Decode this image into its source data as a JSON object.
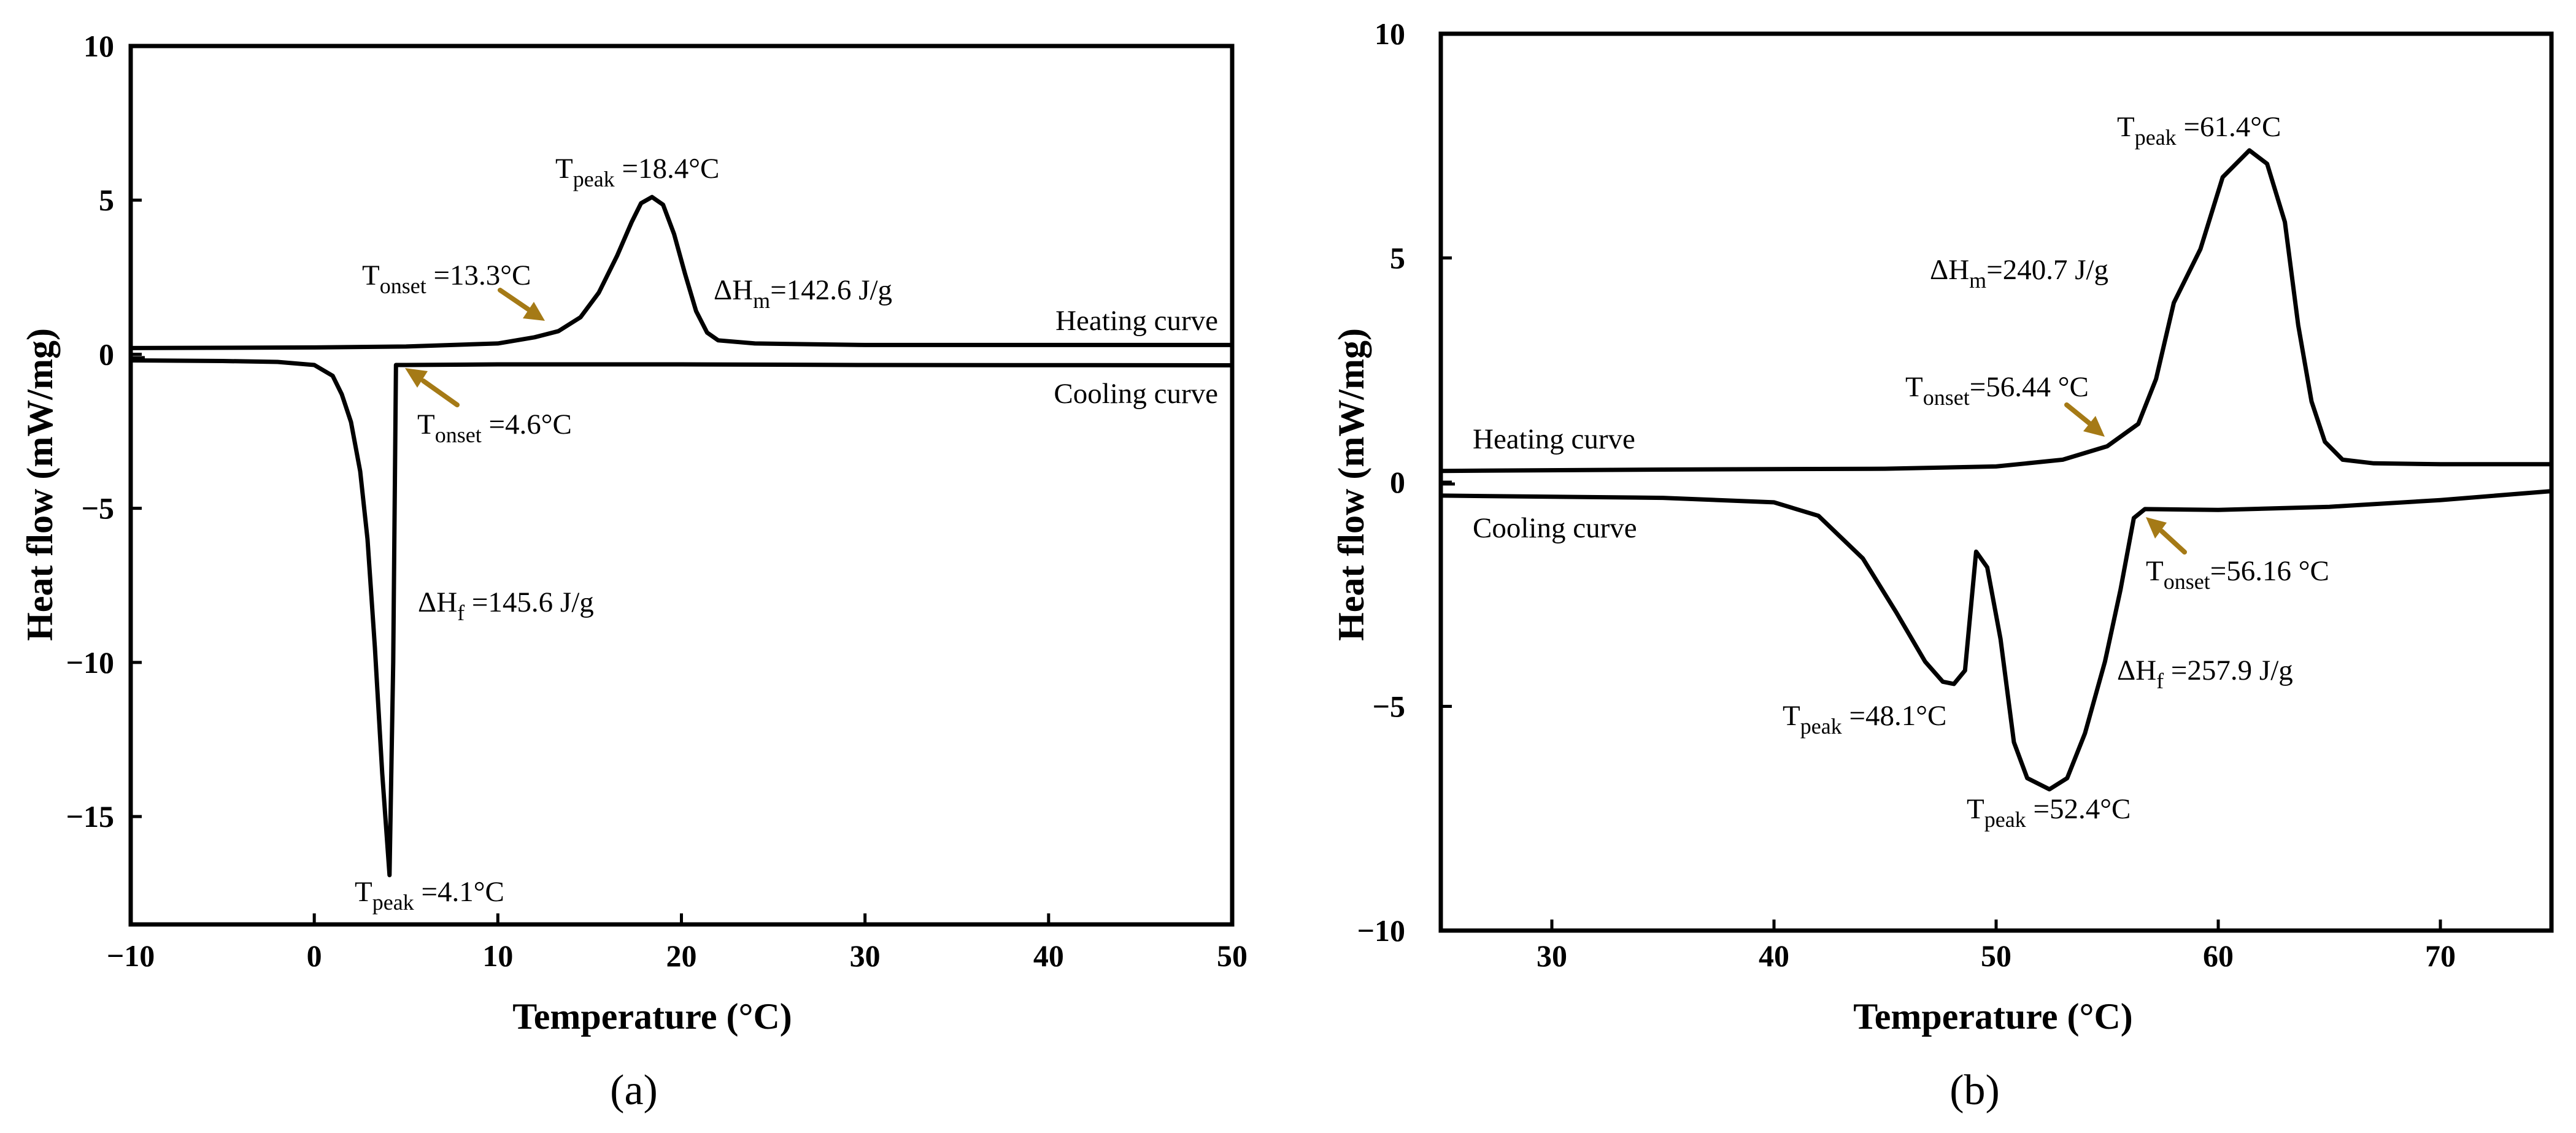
{
  "chart_data": [
    {
      "panel_label": "(a)",
      "type": "line",
      "xlabel": "Temperature (°C)",
      "ylabel": "Heat flow (mW/mg)",
      "xlim": [
        -10,
        50
      ],
      "ylim": [
        -18.5,
        10
      ],
      "xticks": [
        -10,
        0,
        10,
        20,
        30,
        40,
        50
      ],
      "xtick_labels": [
        "−10",
        "0",
        "10",
        "20",
        "30",
        "40",
        "50"
      ],
      "yticks": [
        -15,
        -10,
        -5,
        0,
        5,
        10
      ],
      "ytick_labels": [
        "−15",
        "−10",
        "−5",
        "0",
        "5",
        "10"
      ],
      "grid": false,
      "series": [
        {
          "name": "Heating curve",
          "points": [
            [
              -10,
              0.2
            ],
            [
              0,
              0.22
            ],
            [
              5,
              0.25
            ],
            [
              10,
              0.35
            ],
            [
              12,
              0.55
            ],
            [
              13.3,
              0.75
            ],
            [
              14.5,
              1.2
            ],
            [
              15.5,
              2.0
            ],
            [
              16.5,
              3.2
            ],
            [
              17.3,
              4.3
            ],
            [
              17.8,
              4.9
            ],
            [
              18.4,
              5.1
            ],
            [
              19,
              4.85
            ],
            [
              19.6,
              3.9
            ],
            [
              20.2,
              2.6
            ],
            [
              20.8,
              1.4
            ],
            [
              21.4,
              0.7
            ],
            [
              22,
              0.45
            ],
            [
              24,
              0.35
            ],
            [
              30,
              0.3
            ],
            [
              40,
              0.3
            ],
            [
              50,
              0.3
            ]
          ]
        },
        {
          "name": "Cooling curve",
          "points": [
            [
              -10,
              -0.2
            ],
            [
              -5,
              -0.22
            ],
            [
              -2,
              -0.25
            ],
            [
              0,
              -0.35
            ],
            [
              1,
              -0.7
            ],
            [
              1.5,
              -1.3
            ],
            [
              2,
              -2.2
            ],
            [
              2.5,
              -3.8
            ],
            [
              2.9,
              -6.0
            ],
            [
              3.3,
              -9.5
            ],
            [
              3.7,
              -13.6
            ],
            [
              4.1,
              -16.9
            ],
            [
              4.3,
              -10
            ],
            [
              4.45,
              -0.35
            ],
            [
              5,
              -0.35
            ],
            [
              10,
              -0.33
            ],
            [
              20,
              -0.33
            ],
            [
              30,
              -0.35
            ],
            [
              50,
              -0.36
            ]
          ]
        }
      ],
      "annotations": [
        {
          "main": "T",
          "sub": "peak",
          "rest": " =18.4°C"
        },
        {
          "main": "T",
          "sub": "onset",
          "rest": " =13.3°C"
        },
        {
          "main": "ΔH",
          "sub": "m",
          "rest": "=142.6 J/g"
        },
        {
          "main": "T",
          "sub": "onset",
          "rest": " =4.6°C"
        },
        {
          "main": "ΔH",
          "sub": "f",
          "rest": " =145.6 J/g"
        },
        {
          "main": "T",
          "sub": "peak",
          "rest": " =4.1°C"
        }
      ],
      "curve_labels": [
        "Heating curve",
        "Cooling curve"
      ],
      "arrow_color": "#a57a16"
    },
    {
      "panel_label": "(b)",
      "type": "line",
      "xlabel": "Temperature (°C)",
      "ylabel": "Heat flow (mW/mg)",
      "xlim": [
        25,
        75
      ],
      "ylim": [
        -10,
        10
      ],
      "xticks": [
        30,
        40,
        50,
        60,
        70
      ],
      "xtick_labels": [
        "30",
        "40",
        "50",
        "60",
        "70"
      ],
      "yticks": [
        -10,
        -5,
        0,
        5,
        10
      ],
      "ytick_labels": [
        "−10",
        "−5",
        "0",
        "5",
        "10"
      ],
      "grid": false,
      "series": [
        {
          "name": "Heating curve",
          "points": [
            [
              25,
              0.25
            ],
            [
              35,
              0.28
            ],
            [
              45,
              0.3
            ],
            [
              50,
              0.35
            ],
            [
              53,
              0.5
            ],
            [
              55,
              0.8
            ],
            [
              56.4,
              1.3
            ],
            [
              57.2,
              2.3
            ],
            [
              58,
              4.0
            ],
            [
              59.2,
              5.2
            ],
            [
              60.2,
              6.8
            ],
            [
              61.4,
              7.4
            ],
            [
              62.2,
              7.1
            ],
            [
              63,
              5.8
            ],
            [
              63.6,
              3.5
            ],
            [
              64.2,
              1.8
            ],
            [
              64.8,
              0.9
            ],
            [
              65.6,
              0.5
            ],
            [
              67,
              0.42
            ],
            [
              70,
              0.4
            ],
            [
              75,
              0.4
            ]
          ]
        },
        {
          "name": "Cooling curve",
          "points": [
            [
              25,
              -0.3
            ],
            [
              35,
              -0.35
            ],
            [
              40,
              -0.45
            ],
            [
              42,
              -0.75
            ],
            [
              44,
              -1.7
            ],
            [
              45.5,
              -2.9
            ],
            [
              46.8,
              -4.0
            ],
            [
              47.6,
              -4.45
            ],
            [
              48.1,
              -4.5
            ],
            [
              48.6,
              -4.2
            ],
            [
              49.1,
              -1.55
            ],
            [
              49.6,
              -1.9
            ],
            [
              50.2,
              -3.5
            ],
            [
              50.8,
              -5.8
            ],
            [
              51.4,
              -6.6
            ],
            [
              52.4,
              -6.85
            ],
            [
              53.2,
              -6.6
            ],
            [
              54,
              -5.6
            ],
            [
              54.9,
              -4.0
            ],
            [
              55.6,
              -2.4
            ],
            [
              56.2,
              -0.8
            ],
            [
              56.7,
              -0.6
            ],
            [
              60,
              -0.62
            ],
            [
              65,
              -0.55
            ],
            [
              70,
              -0.4
            ],
            [
              75,
              -0.2
            ]
          ]
        }
      ],
      "annotations": [
        {
          "main": "T",
          "sub": "peak",
          "rest": " =61.4°C"
        },
        {
          "main": "ΔH",
          "sub": "m",
          "rest": "=240.7 J/g"
        },
        {
          "main": "T",
          "sub": "onset",
          "rest": "=56.44 °C"
        },
        {
          "main": "T",
          "sub": "onset",
          "rest": "=56.16 °C"
        },
        {
          "main": "ΔH",
          "sub": "f",
          "rest": " =257.9 J/g"
        },
        {
          "main": "T",
          "sub": "peak",
          "rest": " =48.1°C"
        },
        {
          "main": "T",
          "sub": "peak",
          "rest": " =52.4°C"
        }
      ],
      "curve_labels": [
        "Heating curve",
        "Cooling curve"
      ],
      "arrow_color": "#a57a16"
    }
  ]
}
